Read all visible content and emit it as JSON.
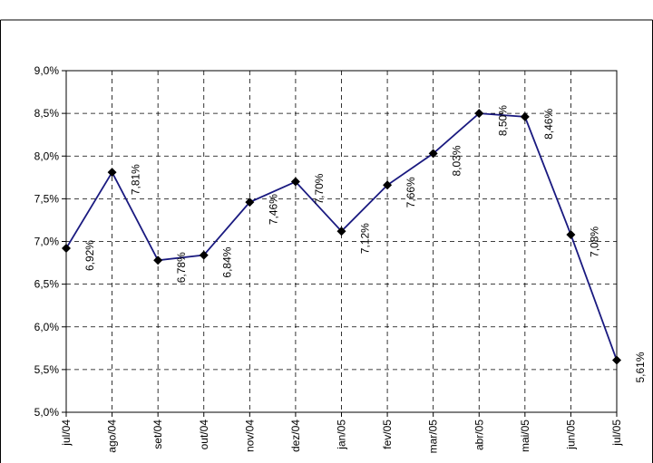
{
  "chart_data": {
    "type": "line",
    "title": "",
    "xlabel": "",
    "ylabel": "",
    "categories": [
      "jul/04",
      "ago/04",
      "set/04",
      "out/04",
      "nov/04",
      "dez/04",
      "jan/05",
      "fev/05",
      "mar/05",
      "abr/05",
      "mai/05",
      "jun/05",
      "jul/05"
    ],
    "series": [
      {
        "values": [
          6.92,
          7.81,
          6.78,
          6.84,
          7.46,
          7.7,
          7.12,
          7.66,
          8.03,
          8.5,
          8.46,
          7.08,
          5.61
        ],
        "labels": [
          "6,92%",
          "7,81%",
          "6,78%",
          "6,84%",
          "7,46%",
          "7,70%",
          "7,12%",
          "7,66%",
          "8,03%",
          "8,50%",
          "8,46%",
          "7,08%",
          "5,61%"
        ],
        "color": "#1a1a80",
        "marker": "diamond"
      }
    ],
    "yticks": [
      "5,0%",
      "5,5%",
      "6,0%",
      "6,5%",
      "7,0%",
      "7,5%",
      "8,0%",
      "8,5%",
      "9,0%"
    ],
    "ylim": [
      5.0,
      9.0
    ],
    "grid": true,
    "legend": "none"
  }
}
